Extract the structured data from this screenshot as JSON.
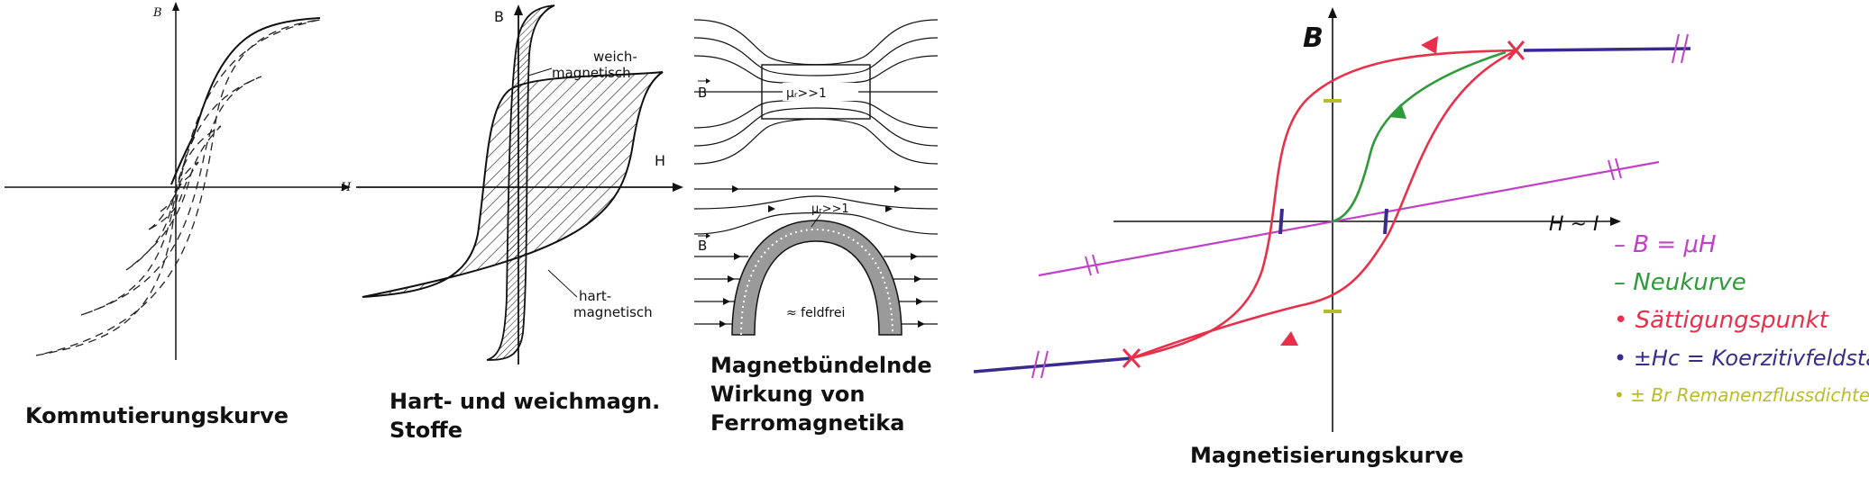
{
  "panel1": {
    "caption": "Kommutierungskurve",
    "axis_b": "B",
    "axis_h": "H"
  },
  "panel2": {
    "caption_line1": "Hart- und weichmagn.",
    "caption_line2": "Stoffe",
    "axis_b": "B",
    "axis_h": "H",
    "label_soft_1": "weich-",
    "label_soft_2": "magnetisch",
    "label_hard_1": "hart-",
    "label_hard_2": "magnetisch"
  },
  "panel3": {
    "caption_line1": "Magnetbündelnde",
    "caption_line2": "Wirkung von",
    "caption_line3": "Ferromagnetika",
    "field_symbol_top": "B",
    "mu_label_top": "μᵣ>>1",
    "field_symbol_bottom": "B",
    "mu_label_bottom": "μᵣ>>1",
    "field_free_label": "≈ feldfrei"
  },
  "panel4": {
    "caption": "Magnetisierungskurve",
    "axis_b": "B",
    "axis_h": "H ~ I",
    "legend": [
      {
        "text": "– B = μH",
        "color": "#c040c8"
      },
      {
        "text": "– Neukurve",
        "color": "#2e9a3a"
      },
      {
        "text": "• Sättigungspunkt",
        "color": "#e8304a"
      },
      {
        "text": "• ±Hc = Koerzitivfeldstärke",
        "color": "#3a2a8e"
      },
      {
        "text": "• ± Br Remanenzflussdichte",
        "color": "#b8bc28"
      }
    ]
  }
}
